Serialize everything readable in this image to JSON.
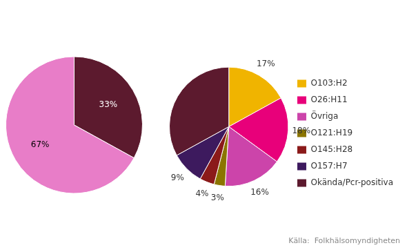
{
  "chart_data": [
    {
      "type": "pie",
      "values": [
        33,
        67
      ],
      "value_labels": [
        "33%",
        "67%"
      ],
      "colors": [
        "#5c1a2e",
        "#e87dc8"
      ],
      "data_labels": true
    },
    {
      "type": "pie",
      "categories": [
        "O103:H2",
        "O26:H11",
        "Övriga",
        "O121:H19",
        "O145:H28",
        "O157:H7",
        "Okända/Pcr-positiva"
      ],
      "values": [
        17,
        18,
        16,
        3,
        4,
        9,
        33
      ],
      "value_labels": [
        "17%",
        "18%",
        "16%",
        "3%",
        "4%",
        "9%",
        null
      ],
      "colors": [
        "#f0b400",
        "#e8007a",
        "#cc44aa",
        "#8b7500",
        "#8b1a1a",
        "#3d1a5e",
        "#5c1a2e"
      ],
      "data_labels": true,
      "legend": "right",
      "annotation": "Källa:  Folkhälsomyndigheten"
    }
  ]
}
